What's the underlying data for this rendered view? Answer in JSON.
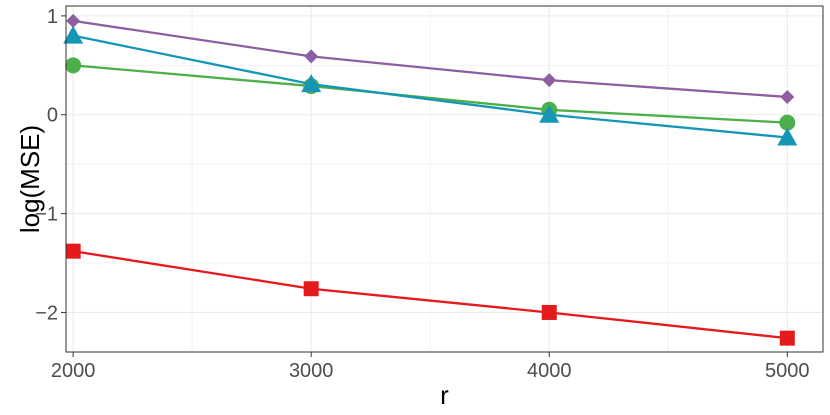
{
  "chart_data": {
    "type": "line",
    "title": "",
    "xlabel": "r",
    "ylabel": "log(MSE)",
    "x": [
      2000,
      3000,
      4000,
      5000
    ],
    "xlim": [
      1970,
      5150
    ],
    "ylim": [
      -2.4,
      1.1
    ],
    "x_ticks": [
      2000,
      3000,
      4000,
      5000
    ],
    "x_tick_labels": [
      "2000",
      "3000",
      "4000",
      "5000"
    ],
    "y_ticks": [
      -2,
      -1,
      0,
      1
    ],
    "y_tick_labels": [
      "−2",
      "−1",
      "0",
      "1"
    ],
    "grid": true,
    "legend": "none",
    "series": [
      {
        "color": "#e41a1c",
        "marker": "square",
        "values": [
          -1.38,
          -1.76,
          -2.0,
          -2.26
        ]
      },
      {
        "color": "#4daf4a",
        "marker": "circle",
        "values": [
          0.5,
          0.29,
          0.05,
          -0.08
        ]
      },
      {
        "color": "#1596b4",
        "marker": "triangle",
        "values": [
          0.8,
          0.31,
          0.0,
          -0.23
        ]
      },
      {
        "color": "#8e5ea2",
        "marker": "diamond",
        "values": [
          0.95,
          0.59,
          0.35,
          0.18
        ]
      }
    ]
  }
}
